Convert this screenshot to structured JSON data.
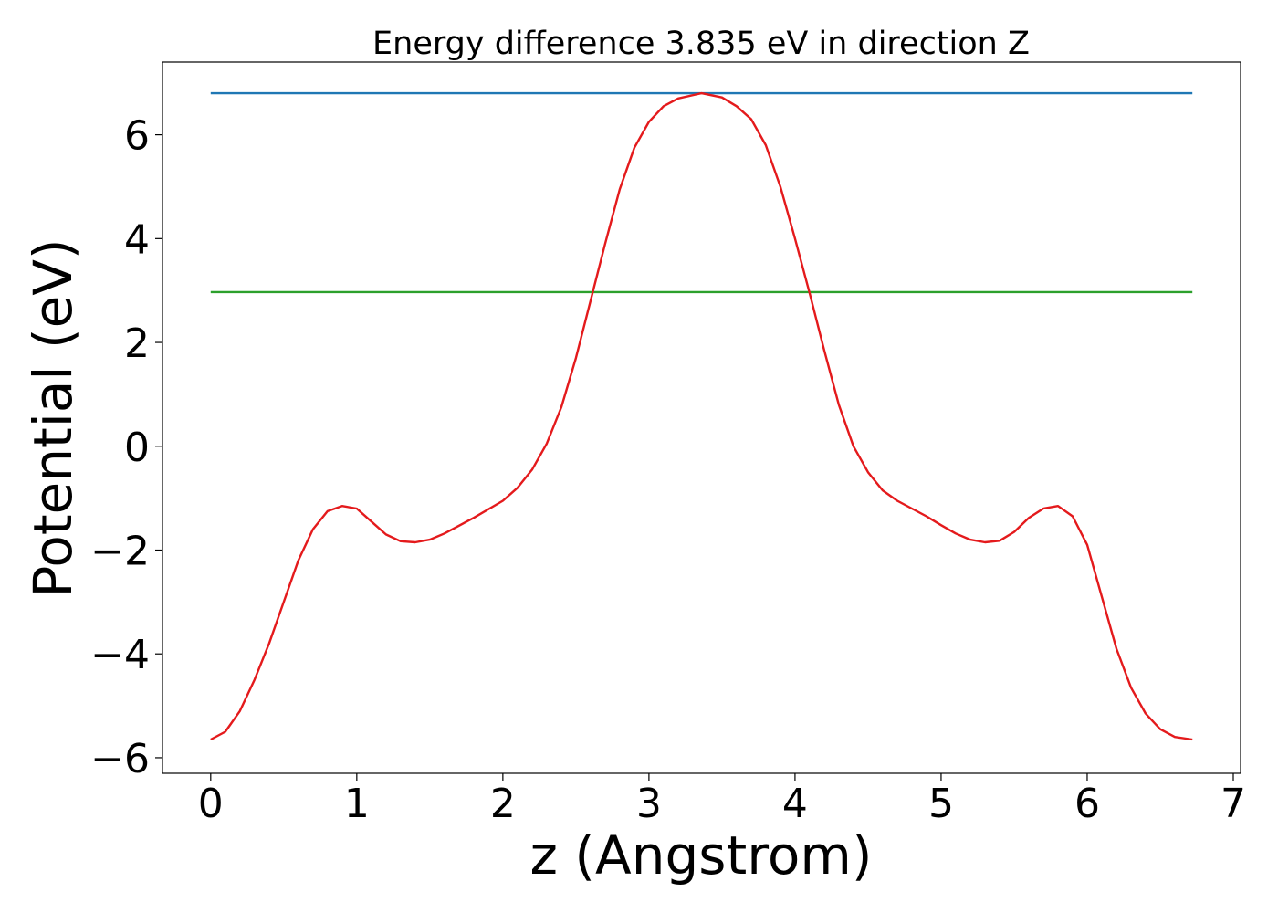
{
  "chart_data": {
    "type": "line",
    "title": "Energy difference 3.835 eV in direction Z",
    "xlabel": "z (Angstrom)",
    "ylabel": "Potential (eV)",
    "xlim": [
      -0.33,
      7.05
    ],
    "ylim": [
      -6.3,
      7.4
    ],
    "xticks": [
      0,
      1,
      2,
      3,
      4,
      5,
      6,
      7
    ],
    "xtick_labels": [
      "0",
      "1",
      "2",
      "3",
      "4",
      "5",
      "6",
      "7"
    ],
    "yticks": [
      -6,
      -4,
      -2,
      0,
      2,
      4,
      6
    ],
    "ytick_labels": [
      "−6",
      "−4",
      "−2",
      "0",
      "2",
      "4",
      "6"
    ],
    "grid": false,
    "series": [
      {
        "color": "#1f77b4",
        "x": [
          0,
          6.72
        ],
        "y": [
          6.8,
          6.8
        ]
      },
      {
        "color": "#2ca02c",
        "x": [
          0,
          6.72
        ],
        "y": [
          2.97,
          2.97
        ]
      },
      {
        "color": "#e41a1c",
        "x": [
          0,
          0.1,
          0.2,
          0.3,
          0.4,
          0.5,
          0.6,
          0.7,
          0.8,
          0.9,
          1.0,
          1.1,
          1.2,
          1.3,
          1.4,
          1.5,
          1.6,
          1.8,
          2.0,
          2.1,
          2.2,
          2.3,
          2.4,
          2.5,
          2.6,
          2.7,
          2.8,
          2.9,
          3.0,
          3.1,
          3.2,
          3.36,
          3.5,
          3.6,
          3.7,
          3.8,
          3.9,
          4.0,
          4.1,
          4.2,
          4.3,
          4.4,
          4.5,
          4.6,
          4.7,
          4.8,
          4.9,
          5.0,
          5.1,
          5.2,
          5.3,
          5.4,
          5.5,
          5.6,
          5.7,
          5.8,
          5.9,
          6.0,
          6.1,
          6.2,
          6.3,
          6.4,
          6.5,
          6.6,
          6.72
        ],
        "y": [
          -5.65,
          -5.5,
          -5.1,
          -4.5,
          -3.8,
          -3.0,
          -2.2,
          -1.6,
          -1.25,
          -1.15,
          -1.2,
          -1.45,
          -1.7,
          -1.83,
          -1.85,
          -1.8,
          -1.68,
          -1.38,
          -1.05,
          -0.8,
          -0.45,
          0.05,
          0.75,
          1.7,
          2.8,
          3.9,
          4.95,
          5.75,
          6.25,
          6.55,
          6.7,
          6.8,
          6.72,
          6.55,
          6.3,
          5.8,
          5.0,
          4.0,
          2.95,
          1.85,
          0.8,
          0.0,
          -0.5,
          -0.85,
          -1.05,
          -1.2,
          -1.35,
          -1.52,
          -1.68,
          -1.8,
          -1.85,
          -1.82,
          -1.65,
          -1.38,
          -1.2,
          -1.15,
          -1.35,
          -1.9,
          -2.9,
          -3.9,
          -4.65,
          -5.15,
          -5.45,
          -5.6,
          -5.65
        ]
      }
    ]
  }
}
